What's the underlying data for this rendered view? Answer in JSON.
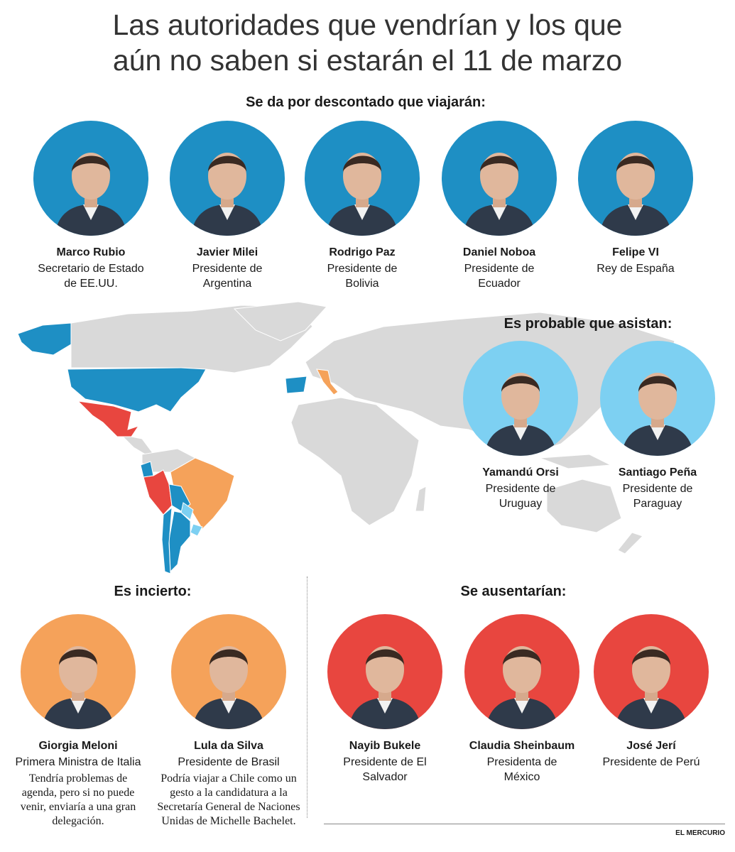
{
  "title": "Las autoridades que vendrían y los que aún no saben si estarán el 11 de marzo",
  "sections": [
    {
      "heading": "Se da por descontado que viajarán:",
      "people": [
        {
          "name": "Marco Rubio",
          "role": "Secretario de Estado de EE.UU."
        },
        {
          "name": "Javier Milei",
          "role": "Presidente de Argentina"
        },
        {
          "name": "Rodrigo Paz",
          "role": "Presidente de Bolivia"
        },
        {
          "name": "Daniel Noboa",
          "role": "Presidente de Ecuador"
        },
        {
          "name": "Felipe VI",
          "role": "Rey de España"
        }
      ]
    },
    {
      "heading": "Es probable que asistan:",
      "people": [
        {
          "name": "Yamandú Orsi",
          "role": "Presidente de Uruguay"
        },
        {
          "name": "Santiago Peña",
          "role": "Presidente de Paraguay"
        }
      ]
    },
    {
      "heading": "Es incierto:",
      "people": [
        {
          "name": "Giorgia Meloni",
          "role": "Primera Ministra de Italia",
          "note": "Tendría problemas de agenda, pero si no puede venir, enviaría a una gran delegación."
        },
        {
          "name": "Lula da Silva",
          "role": "Presidente de Brasil",
          "note": "Podría viajar a Chile como un gesto a la candidatura a la Secretaría General de Naciones Unidas de Michelle Bachelet."
        }
      ]
    },
    {
      "heading": "Se ausentarían:",
      "people": [
        {
          "name": "Nayib Bukele",
          "role": "Presidente de El Salvador"
        },
        {
          "name": "Claudia Sheinbaum",
          "role": "Presidenta de México"
        },
        {
          "name": "José Jerí",
          "role": "Presidente de Perú"
        }
      ]
    }
  ],
  "source": "EL MERCURIO"
}
